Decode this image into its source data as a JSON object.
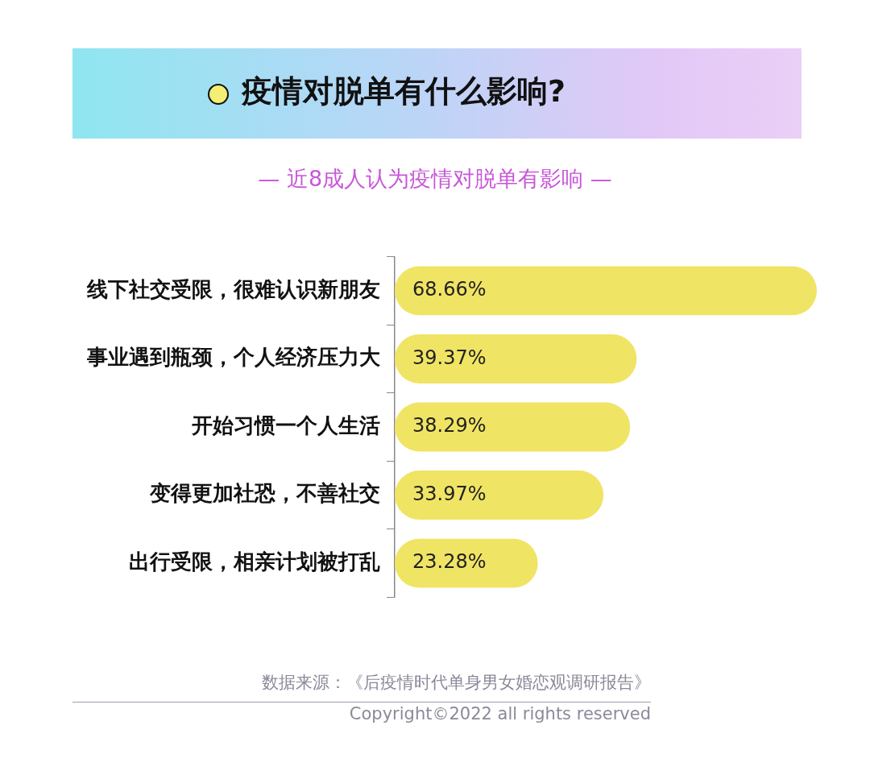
{
  "chart_data": {
    "type": "bar",
    "orientation": "horizontal",
    "title": "疫情对脱单有什么影响?",
    "subtitle": "— 近8成人认为疫情对脱单有影响 —",
    "categories": [
      "线下社交受限，很难认识新朋友",
      "事业遇到瓶颈，个人经济压力大",
      "开始习惯一个人生活",
      "变得更加社恐，不善社交",
      "出行受限，相亲计划被打乱"
    ],
    "values": [
      68.66,
      39.37,
      38.29,
      33.97,
      23.28
    ],
    "value_labels": [
      "68.66%",
      "39.37%",
      "38.29%",
      "33.97%",
      "23.28%"
    ],
    "color": "#f0e464",
    "tick_labels": "y",
    "legend": false,
    "annotations": [
      "数据来源：《后疫情时代单身男女婚恋观调研报告》",
      "Copyright©2022 all rights reserved"
    ]
  }
}
